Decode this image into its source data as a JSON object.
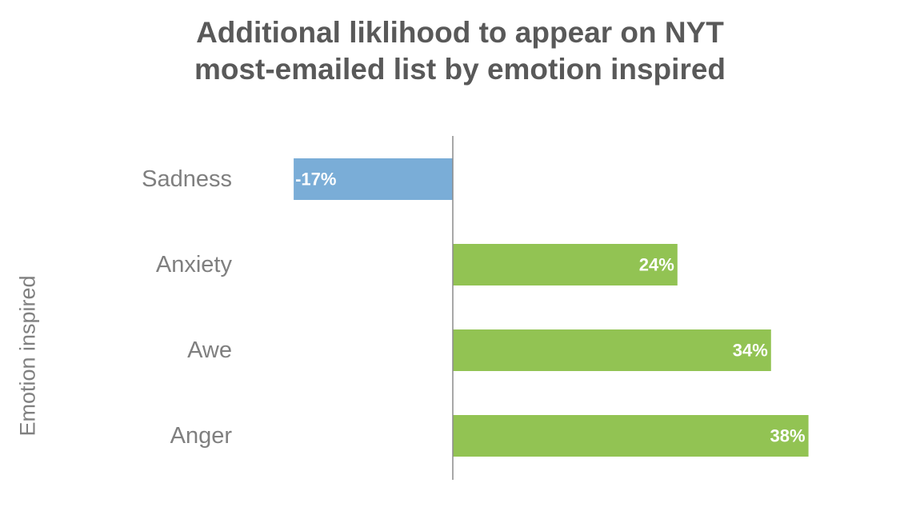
{
  "chart_data": {
    "type": "bar",
    "orientation": "horizontal",
    "title_lines": [
      "Additional liklihood to appear on NYT",
      "most-emailed list by emotion inspired"
    ],
    "ylabel": "Emotion inspired",
    "xlabel": "",
    "categories": [
      "Sadness",
      "Anxiety",
      "Awe",
      "Anger"
    ],
    "values": [
      -17,
      24,
      34,
      38
    ],
    "value_labels": [
      "-17%",
      "24%",
      "34%",
      "38%"
    ],
    "xlim": [
      -17,
      38
    ],
    "grid": false,
    "legend": "none",
    "colors": {
      "negative": "#7aadd7",
      "positive": "#92c353",
      "axis": "#8c8c8c"
    }
  }
}
